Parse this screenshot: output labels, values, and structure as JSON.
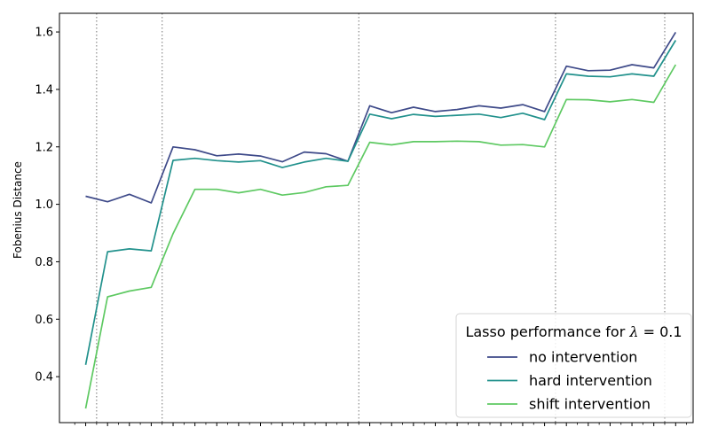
{
  "chart_data": {
    "type": "line",
    "title": "",
    "xlabel": "",
    "ylabel": "Fobenius Distance",
    "ylim": [
      0.24,
      1.665
    ],
    "xlim": [
      -1.2,
      27.8
    ],
    "yticks": [
      "0.4",
      "0.6",
      "0.8",
      "1.0",
      "1.2",
      "1.4",
      "1.6"
    ],
    "x": [
      0,
      1,
      2,
      3,
      4,
      5,
      6,
      7,
      8,
      9,
      10,
      11,
      12,
      13,
      14,
      15,
      16,
      17,
      18,
      19,
      20,
      21,
      22,
      23,
      24,
      25,
      26,
      27
    ],
    "vlines": [
      0.5,
      3.5,
      12.5,
      21.5,
      26.5
    ],
    "grid": false,
    "legend": {
      "title_prefix": "Lasso performance for ",
      "title_symbol": "λ",
      "title_suffix": " = 0.1",
      "placement": "bottom-right"
    },
    "series": [
      {
        "name": "no intervention",
        "color": "#3e4a89",
        "values": [
          1.028,
          1.009,
          1.035,
          1.005,
          1.2,
          1.19,
          1.169,
          1.175,
          1.168,
          1.148,
          1.182,
          1.176,
          1.15,
          1.343,
          1.319,
          1.338,
          1.323,
          1.33,
          1.343,
          1.335,
          1.347,
          1.323,
          1.481,
          1.465,
          1.467,
          1.486,
          1.475,
          1.599
        ]
      },
      {
        "name": "hard intervention",
        "color": "#21918c",
        "values": [
          0.441,
          0.835,
          0.845,
          0.838,
          1.153,
          1.16,
          1.152,
          1.147,
          1.152,
          1.128,
          1.147,
          1.16,
          1.15,
          1.314,
          1.298,
          1.313,
          1.306,
          1.31,
          1.314,
          1.302,
          1.317,
          1.295,
          1.454,
          1.446,
          1.444,
          1.454,
          1.446,
          1.571
        ]
      },
      {
        "name": "shift intervention",
        "color": "#5ec962",
        "values": [
          0.289,
          0.678,
          0.698,
          0.711,
          0.898,
          1.052,
          1.052,
          1.04,
          1.052,
          1.032,
          1.041,
          1.061,
          1.066,
          1.216,
          1.207,
          1.218,
          1.218,
          1.22,
          1.218,
          1.206,
          1.208,
          1.2,
          1.365,
          1.364,
          1.357,
          1.365,
          1.355,
          1.486
        ]
      }
    ]
  }
}
